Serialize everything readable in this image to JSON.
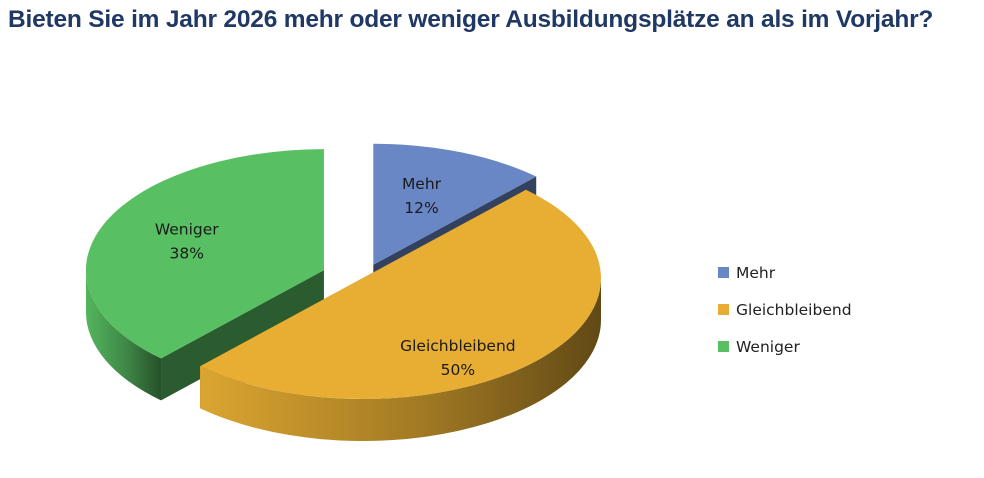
{
  "title": "Bieten Sie im Jahr 2026 mehr oder weniger Ausbildungsplätze an als im Vorjahr?",
  "chart_data": {
    "type": "pie",
    "style": "3d-exploded",
    "categories": [
      "Mehr",
      "Gleichbleibend",
      "Weniger"
    ],
    "values": [
      12,
      50,
      38
    ],
    "value_labels": [
      "12%",
      "50%",
      "38%"
    ],
    "colors": [
      "#6987c5",
      "#e7ae33",
      "#58bf63"
    ],
    "legend_position": "right"
  }
}
